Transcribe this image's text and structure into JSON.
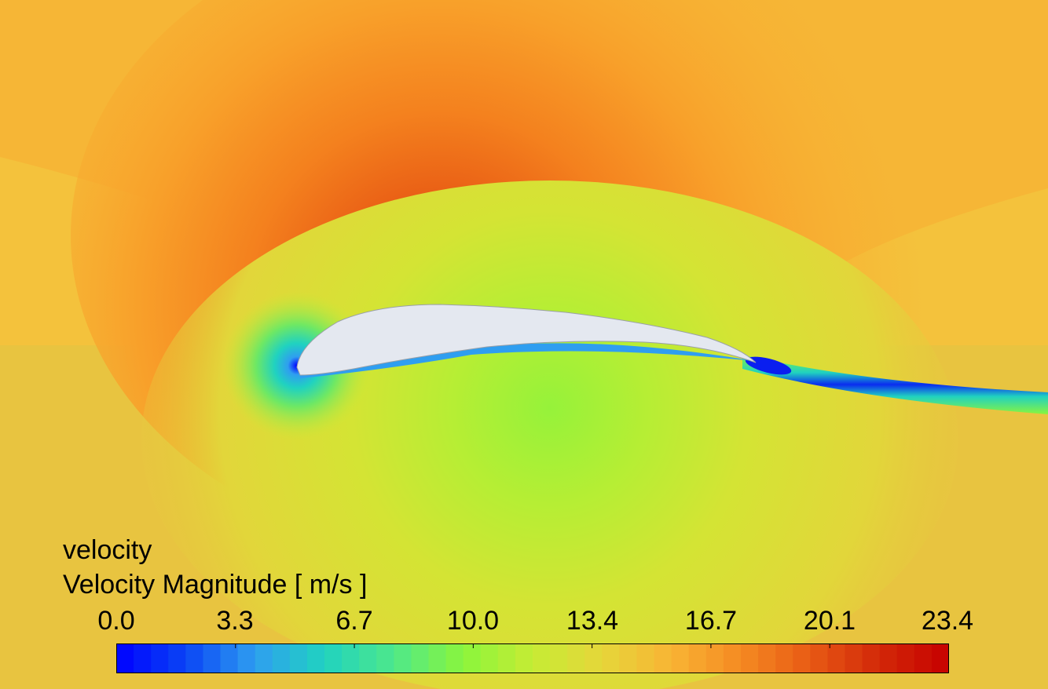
{
  "legend": {
    "name": "velocity",
    "variable": "Velocity Magnitude [ m/s ]",
    "ticks": [
      "0.0",
      "3.3",
      "6.7",
      "10.0",
      "13.4",
      "16.7",
      "20.1",
      "23.4"
    ],
    "min": 0.0,
    "max": 23.4,
    "levels": 48
  },
  "colors": {
    "colormap": [
      "#0000ff",
      "#0a45f5",
      "#2f9ef0",
      "#20d2c0",
      "#4ee88a",
      "#8af53c",
      "#c6ec34",
      "#e6d63a",
      "#f8b434",
      "#f58a22",
      "#e85a14",
      "#d22808",
      "#c60000"
    ],
    "freestream": "#e8c440",
    "airfoil": "#e4e8f0"
  }
}
